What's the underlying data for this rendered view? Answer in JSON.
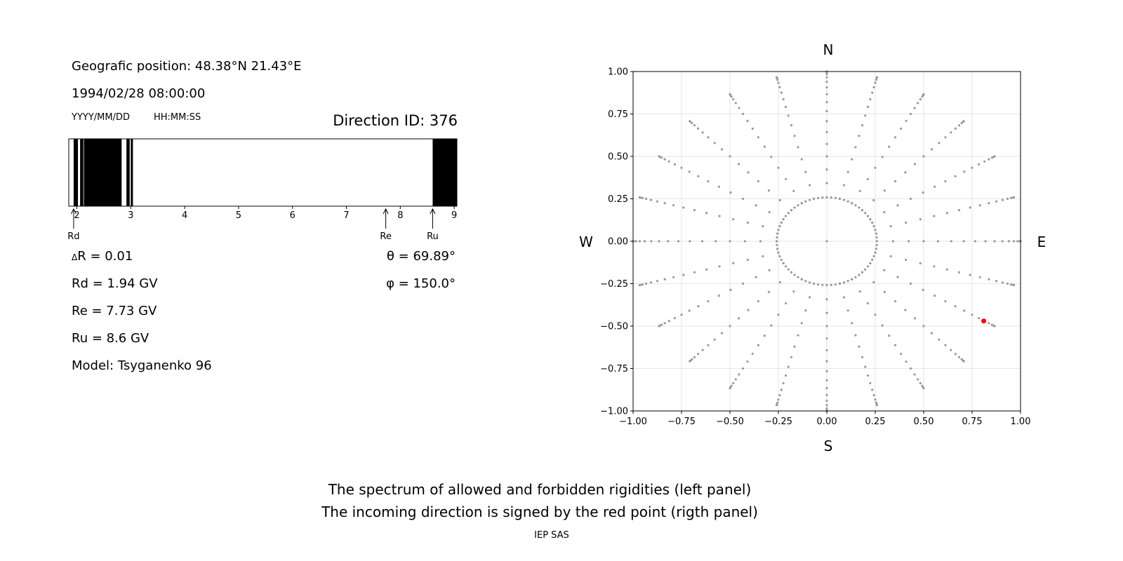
{
  "info": {
    "position": "Geografic position: 48.38°N 21.43°E",
    "datetime": "1994/02/28 08:00:00",
    "date_fmt": "YYYY/MM/DD",
    "time_fmt": "HH:MM:SS",
    "direction_id": "Direction ID: 376"
  },
  "params": {
    "dR": "R = 0.01",
    "dR_symbol": "Δ",
    "Rd": "Rd = 1.94 GV",
    "Re": "Re = 7.73 GV",
    "Ru": "Ru = 8.6 GV",
    "model": "Model: Tsyganenko 96",
    "theta": "θ = 69.89°",
    "phi": "φ = 150.0°"
  },
  "caption": {
    "line1": "The spectrum of allowed and forbidden rigidities (left panel)",
    "line2": "The incoming direction is signed by the red point (rigth panel)",
    "credit": "IEP SAS"
  },
  "chart_data": [
    {
      "type": "bar",
      "description_role": "rigidity spectrum",
      "x_range": [
        1.85,
        9.05
      ],
      "x_ticks": [
        2,
        3,
        4,
        5,
        6,
        7,
        8,
        9
      ],
      "x_tick_labels": [
        "2",
        "3",
        "4",
        "5",
        "6",
        "7",
        "8",
        "9"
      ],
      "forbidden_intervals": [
        [
          1.94,
          2.02
        ],
        [
          2.06,
          2.12
        ],
        [
          2.13,
          2.83
        ],
        [
          2.92,
          2.98
        ],
        [
          3.0,
          3.04
        ],
        [
          8.6,
          9.05
        ]
      ],
      "markers": [
        {
          "label": "Rd",
          "value": 1.94
        },
        {
          "label": "Re",
          "value": 7.73
        },
        {
          "label": "Ru",
          "value": 8.6
        }
      ]
    },
    {
      "type": "scatter",
      "description_role": "incoming directions",
      "xlim": [
        -1.0,
        1.0
      ],
      "ylim": [
        -1.0,
        1.0
      ],
      "x_ticks": [
        "−1.00",
        "−0.75",
        "−0.50",
        "−0.25",
        "0.00",
        "0.25",
        "0.50",
        "0.75",
        "1.00"
      ],
      "y_ticks": [
        "1.00",
        "0.75",
        "0.50",
        "0.25",
        "0.00",
        "−0.25",
        "−0.50",
        "−0.75",
        "−1.00"
      ],
      "grid": true,
      "compass": {
        "north": "N",
        "south": "S",
        "east": "E",
        "west": "W"
      },
      "grid_points": {
        "azimuth_step_deg": 15,
        "zenith_step_deg": 5,
        "zenith_max_deg": 90,
        "inner_circle_zenith_deg": 15,
        "inner_circle_azimuth_step_deg": 5,
        "color": "#999999"
      },
      "highlight": {
        "x": 0.81,
        "y": -0.47,
        "color": "#ff0000"
      }
    }
  ]
}
